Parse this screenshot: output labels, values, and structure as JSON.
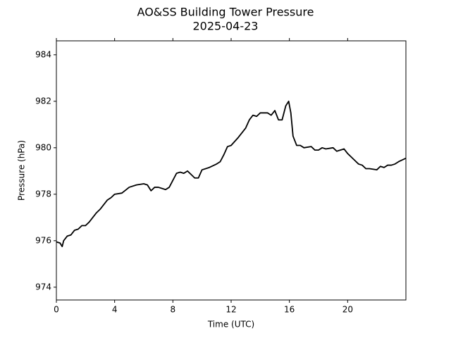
{
  "chart_data": {
    "type": "line",
    "title": "AO&SS Building Tower Pressure",
    "subtitle": "2025-04-23",
    "x_label": "Time (UTC)",
    "y_label": "Pressure (hPa)",
    "color": "#000000",
    "x": [
      0,
      0.25,
      0.4,
      0.5,
      0.75,
      1,
      1.25,
      1.5,
      1.75,
      2,
      2.25,
      2.5,
      2.75,
      3,
      3.25,
      3.5,
      3.75,
      4,
      4.5,
      5,
      5.5,
      6,
      6.25,
      6.5,
      6.75,
      7,
      7.5,
      7.75,
      8,
      8.25,
      8.5,
      8.75,
      9,
      9.25,
      9.5,
      9.75,
      10,
      10.5,
      11,
      11.25,
      11.5,
      11.75,
      12,
      12.5,
      13,
      13.25,
      13.5,
      13.75,
      14,
      14.25,
      14.5,
      14.75,
      15,
      15.25,
      15.5,
      15.75,
      15.95,
      16.1,
      16.25,
      16.5,
      16.75,
      17,
      17.5,
      17.75,
      18,
      18.25,
      18.5,
      19,
      19.25,
      19.5,
      19.75,
      20,
      20.25,
      20.5,
      20.75,
      21,
      21.25,
      21.5,
      22,
      22.25,
      22.5,
      22.75,
      23,
      23.25,
      23.5,
      24
    ],
    "values": [
      975.95,
      975.9,
      975.75,
      976.0,
      976.2,
      976.25,
      976.45,
      976.5,
      976.65,
      976.65,
      976.8,
      977.0,
      977.2,
      977.35,
      977.55,
      977.75,
      977.85,
      978.0,
      978.05,
      978.3,
      978.4,
      978.45,
      978.4,
      978.15,
      978.3,
      978.3,
      978.2,
      978.3,
      978.6,
      978.9,
      978.95,
      978.9,
      979.0,
      978.85,
      978.7,
      978.7,
      979.05,
      979.15,
      979.3,
      979.4,
      979.7,
      980.05,
      980.1,
      980.45,
      980.85,
      981.2,
      981.4,
      981.35,
      981.5,
      981.5,
      981.5,
      981.4,
      981.6,
      981.2,
      981.2,
      981.8,
      982.0,
      981.5,
      980.5,
      980.1,
      980.1,
      980.0,
      980.05,
      979.9,
      979.9,
      980.0,
      979.95,
      980.0,
      979.85,
      979.9,
      979.95,
      979.75,
      979.6,
      979.45,
      979.3,
      979.25,
      979.1,
      979.1,
      979.05,
      979.2,
      979.15,
      979.25,
      979.25,
      979.3,
      979.4,
      979.55
    ],
    "xlim": [
      0,
      24
    ],
    "xticks": [
      0,
      4,
      8,
      12,
      16,
      20
    ],
    "ylim": [
      973.45,
      984.6
    ],
    "yticks": [
      974,
      976,
      978,
      980,
      982,
      984
    ]
  }
}
